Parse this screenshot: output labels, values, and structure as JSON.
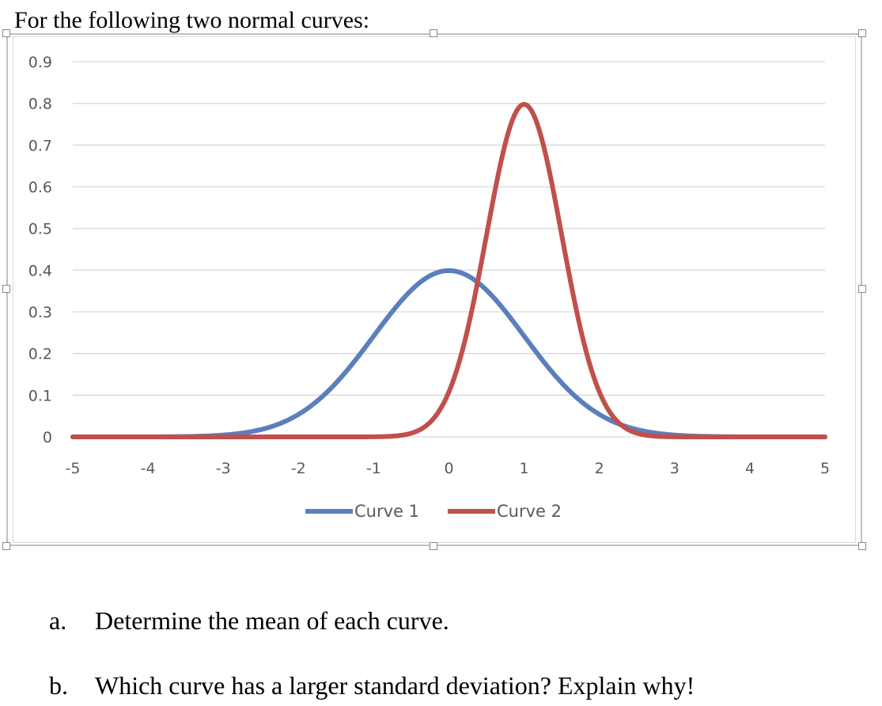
{
  "intro": "For the following two normal curves:",
  "chart_data": {
    "type": "line",
    "x_range": [
      -5,
      5
    ],
    "x_ticks": [
      "-5",
      "-4",
      "-3",
      "-2",
      "-1",
      "0",
      "1",
      "2",
      "3",
      "4",
      "5"
    ],
    "y_range": [
      0,
      0.9
    ],
    "y_ticks": [
      "0",
      "0.1",
      "0.2",
      "0.3",
      "0.4",
      "0.5",
      "0.6",
      "0.7",
      "0.8",
      "0.9"
    ],
    "grid": "horizontal",
    "legend_position": "bottom",
    "series": [
      {
        "name": "Curve 1",
        "color": "#5b7fbd",
        "distribution": "normal",
        "mean": 0,
        "sd": 1,
        "peak": 0.4
      },
      {
        "name": "Curve 2",
        "color": "#c0504d",
        "distribution": "normal",
        "mean": 1,
        "sd": 0.5,
        "peak": 0.8
      }
    ]
  },
  "questions": [
    {
      "marker": "a.",
      "text": "Determine the mean of each curve."
    },
    {
      "marker": "b.",
      "text": "Which curve has a larger standard deviation? Explain why!"
    }
  ]
}
